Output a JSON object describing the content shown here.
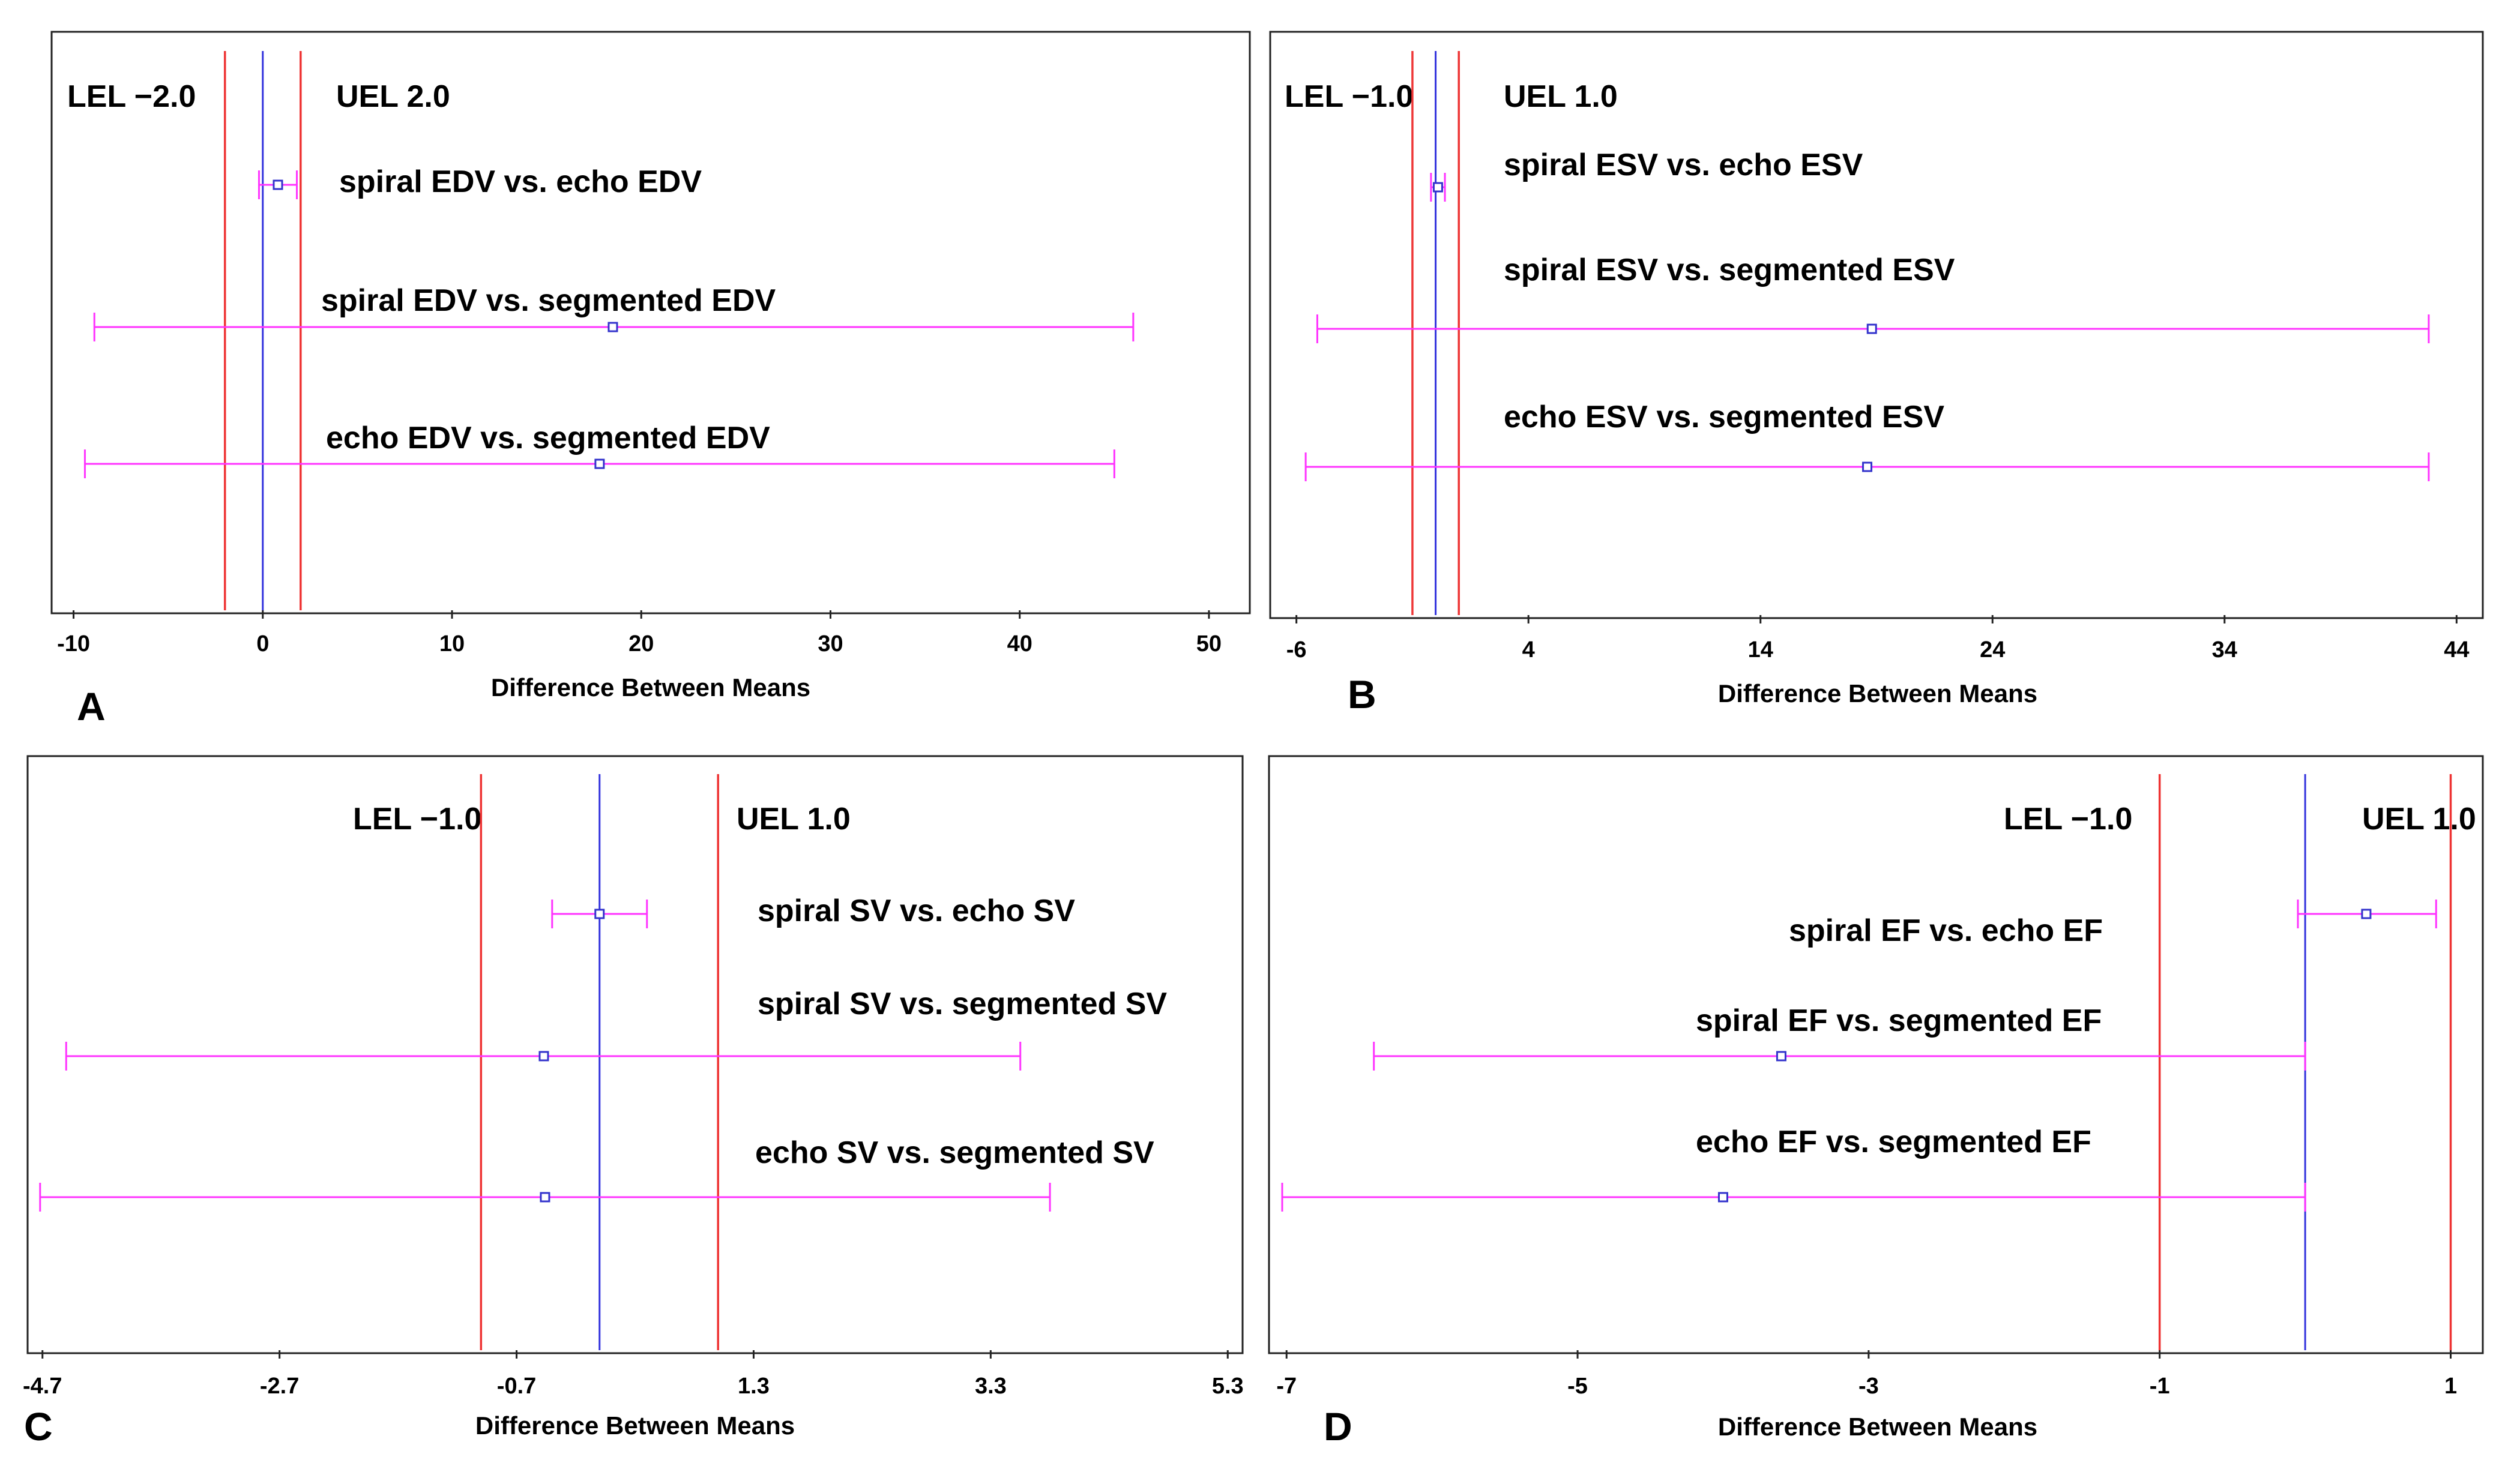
{
  "chart_data": [
    {
      "panel": "A",
      "type": "interval",
      "xlabel": "Difference Between Means",
      "xlim": [
        -11,
        52
      ],
      "ticks": [
        -10,
        0,
        10,
        20,
        30,
        40,
        50
      ],
      "tick_labels": [
        "-10",
        "0",
        "10",
        "20",
        "30",
        "40",
        "50"
      ],
      "limits": [
        {
          "value": -2.0,
          "label": "LEL −2.0"
        },
        {
          "value": 2.0,
          "label": "UEL 2.0"
        }
      ],
      "zero_line": 0,
      "series": [
        {
          "name": "spiral EDV vs. echo EDV",
          "mean": 0.8,
          "lower": -0.2,
          "upper": 1.8
        },
        {
          "name": "spiral EDV vs. segmented EDV",
          "mean": 18.5,
          "lower": -8.9,
          "upper": 46.0
        },
        {
          "name": "echo EDV vs. segmented EDV",
          "mean": 17.8,
          "lower": -9.4,
          "upper": 45.0
        }
      ]
    },
    {
      "panel": "B",
      "type": "interval",
      "xlabel": "Difference Between Means",
      "xlim": [
        -7,
        45
      ],
      "ticks": [
        -6,
        4,
        14,
        24,
        34,
        44
      ],
      "tick_labels": [
        "-6",
        "4",
        "14",
        "24",
        "34",
        "44"
      ],
      "limits": [
        {
          "value": -1.0,
          "label": "LEL −1.0"
        },
        {
          "value": 1.0,
          "label": "UEL 1.0"
        }
      ],
      "zero_line": 0,
      "series": [
        {
          "name": "spiral ESV vs. echo ESV",
          "mean": 0.1,
          "lower": -0.2,
          "upper": 0.4
        },
        {
          "name": "spiral ESV vs. segmented ESV",
          "mean": 18.8,
          "lower": -5.1,
          "upper": 42.8
        },
        {
          "name": "echo ESV vs. segmented ESV",
          "mean": 18.6,
          "lower": -5.6,
          "upper": 42.8
        }
      ]
    },
    {
      "panel": "C",
      "type": "interval",
      "xlabel": "Difference Between Means",
      "xlim": [
        -4.8,
        5.4
      ],
      "ticks": [
        -4.7,
        -2.7,
        -0.7,
        1.3,
        3.3,
        5.3
      ],
      "tick_labels": [
        "-4.7",
        "-2.7",
        "-0.7",
        "1.3",
        "3.3",
        "5.3"
      ],
      "limits": [
        {
          "value": -1.0,
          "label": "LEL −1.0"
        },
        {
          "value": 1.0,
          "label": "UEL 1.0"
        }
      ],
      "zero_line": 0,
      "series": [
        {
          "name": "spiral SV vs. echo SV",
          "mean": 0.0,
          "lower": -0.4,
          "upper": 0.4
        },
        {
          "name": "spiral SV vs. segmented SV",
          "mean": -0.47,
          "lower": -4.5,
          "upper": 3.55
        },
        {
          "name": "echo SV vs. segmented SV",
          "mean": -0.46,
          "lower": -4.72,
          "upper": 3.8
        }
      ]
    },
    {
      "panel": "D",
      "type": "interval",
      "xlabel": "Difference Between Means",
      "xlim": [
        -7.1,
        1.2
      ],
      "ticks": [
        -7,
        -5,
        -3,
        -1,
        1
      ],
      "tick_labels": [
        "-7",
        "-5",
        "-3",
        "-1",
        "1"
      ],
      "limits": [
        {
          "value": -1.0,
          "label": "LEL −1.0"
        },
        {
          "value": 1.0,
          "label": "UEL 1.0"
        }
      ],
      "zero_line": 0,
      "series": [
        {
          "name": "spiral EF vs. echo EF",
          "mean": 0.42,
          "lower": -0.05,
          "upper": 0.9
        },
        {
          "name": "spiral EF vs. segmented EF",
          "mean": -3.6,
          "lower": -6.4,
          "upper": 0.0
        },
        {
          "name": "echo EF vs. segmented EF",
          "mean": -4.0,
          "lower": -7.03,
          "upper": 0.0
        }
      ]
    }
  ],
  "colors": {
    "ci": "#ff33ff",
    "point": "#3333cc",
    "limit": "#ee3333",
    "zero": "#3333dd"
  }
}
